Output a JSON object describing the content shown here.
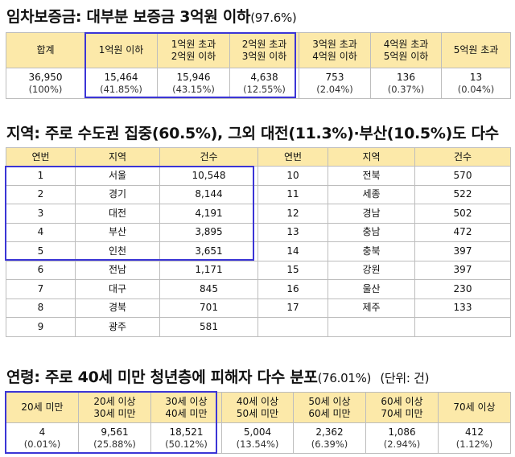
{
  "section1": {
    "title_main": "임차보증금: 대부분 보증금 3억원 이하",
    "title_pct": "(97.6%)",
    "headers": [
      "합계",
      "1억원 이하",
      "1억원 초과\n2억원 이하",
      "2억원 초과\n3억원 이하",
      "3억원 초과\n4억원 이하",
      "4억원 초과\n5억원 이하",
      "5억원 초과"
    ],
    "header_lines": [
      [
        "합계"
      ],
      [
        "1억원 이하"
      ],
      [
        "1억원 초과",
        "2억원 이하"
      ],
      [
        "2억원 초과",
        "3억원 이하"
      ],
      [
        "3억원 초과",
        "4억원 이하"
      ],
      [
        "4억원 초과",
        "5억원 이하"
      ],
      [
        "5억원 초과"
      ]
    ],
    "values": [
      [
        "36,950",
        "(100%)"
      ],
      [
        "15,464",
        "(41.85%)"
      ],
      [
        "15,946",
        "(43.15%)"
      ],
      [
        "4,638",
        "(12.55%)"
      ],
      [
        "753",
        "(2.04%)"
      ],
      [
        "136",
        "(0.37%)"
      ],
      [
        "13",
        "(0.04%)"
      ]
    ]
  },
  "section2": {
    "title": "지역: 주로 수도권 집중(60.5%), 그외 대전(11.3%)·부산(10.5%)도 다수",
    "headers": [
      "연번",
      "지역",
      "건수",
      "연번",
      "지역",
      "건수"
    ],
    "left": [
      [
        "1",
        "서울",
        "10,548"
      ],
      [
        "2",
        "경기",
        "8,144"
      ],
      [
        "3",
        "대전",
        "4,191"
      ],
      [
        "4",
        "부산",
        "3,895"
      ],
      [
        "5",
        "인천",
        "3,651"
      ],
      [
        "6",
        "전남",
        "1,171"
      ],
      [
        "7",
        "대구",
        "845"
      ],
      [
        "8",
        "경북",
        "701"
      ],
      [
        "9",
        "광주",
        "581"
      ]
    ],
    "right": [
      [
        "10",
        "전북",
        "570"
      ],
      [
        "11",
        "세종",
        "522"
      ],
      [
        "12",
        "경남",
        "502"
      ],
      [
        "13",
        "충남",
        "472"
      ],
      [
        "14",
        "충북",
        "397"
      ],
      [
        "15",
        "강원",
        "397"
      ],
      [
        "16",
        "울산",
        "230"
      ],
      [
        "17",
        "제주",
        "133"
      ],
      [
        "",
        "",
        ""
      ]
    ]
  },
  "section3": {
    "title_main": "연령: 주로 40세 미만 청년층에 피해자 다수 분포",
    "title_pct": "(76.01%)",
    "title_unit": "(단위: 건)",
    "header_lines": [
      [
        "20세 미만"
      ],
      [
        "20세 이상",
        "30세 미만"
      ],
      [
        "30세 이상",
        "40세 미만"
      ],
      [
        "40세 이상",
        "50세 미만"
      ],
      [
        "50세 이상",
        "60세 미만"
      ],
      [
        "60세 이상",
        "70세 미만"
      ],
      [
        "70세 이상"
      ]
    ],
    "values": [
      [
        "4",
        "(0.01%)"
      ],
      [
        "9,561",
        "(25.88%)"
      ],
      [
        "18,521",
        "(50.12%)"
      ],
      [
        "5,004",
        "(13.54%)"
      ],
      [
        "2,362",
        "(6.39%)"
      ],
      [
        "1,086",
        "(2.94%)"
      ],
      [
        "412",
        "(1.12%)"
      ]
    ]
  },
  "colors": {
    "header_bg": "#fce9a9",
    "highlight_border": "#3b35d6",
    "grid": "#bdbdbd"
  }
}
